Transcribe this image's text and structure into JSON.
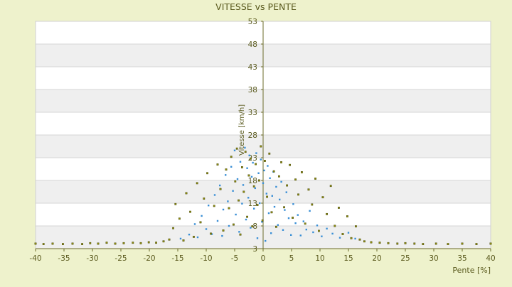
{
  "chart_data": {
    "type": "scatter",
    "title": "VITESSE vs PENTE",
    "xlabel": "Pente [%]",
    "ylabel": "Vitesse [km/h]",
    "xlim": [
      -40,
      40
    ],
    "ylim": [
      3,
      53
    ],
    "x_ticks": [
      "-40",
      "-35",
      "-30",
      "-25",
      "-20",
      "-15",
      "-10",
      "-5",
      "0",
      "5",
      "10",
      "15",
      "20",
      "25",
      "30",
      "35",
      "40"
    ],
    "y_ticks": [
      "3",
      "8",
      "13",
      "18",
      "23",
      "28",
      "33",
      "38",
      "43",
      "48",
      "53"
    ],
    "grid": true,
    "background_bands": true,
    "colors": {
      "page_bg": "#eef2cc",
      "band_light": "#ffffff",
      "band_dark": "#efefef",
      "axis": "#6b6b2a",
      "text": "#5a5a1e",
      "series_a": "#3a8fd6",
      "series_b": "#8c8c10"
    },
    "series": [
      {
        "color": "#3a8fd6",
        "values": [
          [
            -14.5,
            5.2
          ],
          [
            -13.0,
            6.1
          ],
          [
            -12.0,
            8.4
          ],
          [
            -11.5,
            5.5
          ],
          [
            -10.8,
            10.2
          ],
          [
            -10.0,
            7.3
          ],
          [
            -9.6,
            12.5
          ],
          [
            -9.0,
            6.2
          ],
          [
            -8.5,
            14.8
          ],
          [
            -8.0,
            9.1
          ],
          [
            -7.6,
            16.9
          ],
          [
            -7.2,
            5.8
          ],
          [
            -7.0,
            11.6
          ],
          [
            -6.6,
            19.2
          ],
          [
            -6.2,
            13.4
          ],
          [
            -6.0,
            8.0
          ],
          [
            -5.6,
            21.0
          ],
          [
            -5.3,
            15.7
          ],
          [
            -5.0,
            24.6
          ],
          [
            -4.8,
            10.5
          ],
          [
            -4.5,
            18.3
          ],
          [
            -4.2,
            6.7
          ],
          [
            -4.0,
            22.1
          ],
          [
            -3.7,
            12.9
          ],
          [
            -3.5,
            17.0
          ],
          [
            -3.2,
            25.2
          ],
          [
            -3.0,
            9.4
          ],
          [
            -2.8,
            20.7
          ],
          [
            -2.6,
            14.2
          ],
          [
            -2.4,
            23.5
          ],
          [
            -2.2,
            7.6
          ],
          [
            -2.0,
            18.8
          ],
          [
            -1.8,
            21.9
          ],
          [
            -1.6,
            11.8
          ],
          [
            -1.4,
            16.3
          ],
          [
            -1.2,
            24.0
          ],
          [
            -1.0,
            5.3
          ],
          [
            -0.8,
            19.6
          ],
          [
            -0.6,
            13.0
          ],
          [
            -0.4,
            22.6
          ],
          [
            -0.2,
            8.9
          ],
          [
            0.0,
            17.4
          ],
          [
            0.2,
            20.2
          ],
          [
            0.4,
            4.7
          ],
          [
            0.6,
            15.1
          ],
          [
            0.8,
            21.2
          ],
          [
            1.0,
            10.8
          ],
          [
            1.2,
            18.5
          ],
          [
            1.4,
            6.4
          ],
          [
            1.6,
            14.6
          ],
          [
            1.8,
            19.9
          ],
          [
            2.0,
            12.2
          ],
          [
            2.3,
            16.6
          ],
          [
            2.6,
            8.2
          ],
          [
            2.9,
            13.8
          ],
          [
            3.2,
            17.7
          ],
          [
            3.5,
            7.1
          ],
          [
            3.8,
            11.5
          ],
          [
            4.1,
            15.4
          ],
          [
            4.5,
            9.7
          ],
          [
            4.9,
            6.0
          ],
          [
            5.3,
            12.8
          ],
          [
            5.7,
            8.6
          ],
          [
            6.1,
            10.4
          ],
          [
            6.6,
            5.9
          ],
          [
            7.1,
            9.0
          ],
          [
            7.6,
            7.2
          ],
          [
            8.2,
            11.3
          ],
          [
            8.8,
            6.6
          ],
          [
            9.5,
            8.1
          ],
          [
            10.3,
            5.7
          ],
          [
            11.2,
            7.4
          ],
          [
            12.2,
            6.3
          ],
          [
            13.5,
            5.4
          ],
          [
            15.0,
            6.5
          ],
          [
            16.2,
            5.2
          ]
        ]
      },
      {
        "color": "#8c8c10",
        "values": [
          [
            -40.0,
            4.1
          ],
          [
            -38.6,
            4.0
          ],
          [
            -37.0,
            4.1
          ],
          [
            -35.2,
            4.0
          ],
          [
            -33.5,
            4.1
          ],
          [
            -31.8,
            4.0
          ],
          [
            -30.4,
            4.2
          ],
          [
            -29.0,
            4.1
          ],
          [
            -27.5,
            4.3
          ],
          [
            -26.0,
            4.1
          ],
          [
            -24.5,
            4.2
          ],
          [
            -22.9,
            4.3
          ],
          [
            -21.5,
            4.2
          ],
          [
            -20.1,
            4.4
          ],
          [
            -18.8,
            4.3
          ],
          [
            -17.5,
            4.6
          ],
          [
            -16.5,
            5.0
          ],
          [
            -15.8,
            7.5
          ],
          [
            -15.4,
            12.8
          ],
          [
            -14.7,
            9.6
          ],
          [
            -14.0,
            4.8
          ],
          [
            -13.5,
            15.2
          ],
          [
            -12.8,
            11.1
          ],
          [
            -12.2,
            5.6
          ],
          [
            -11.6,
            17.4
          ],
          [
            -11.0,
            8.8
          ],
          [
            -10.4,
            14.0
          ],
          [
            -9.8,
            19.6
          ],
          [
            -9.2,
            6.3
          ],
          [
            -8.6,
            12.4
          ],
          [
            -8.0,
            21.5
          ],
          [
            -7.5,
            16.1
          ],
          [
            -7.0,
            7.0
          ],
          [
            -6.5,
            20.4
          ],
          [
            -6.0,
            11.9
          ],
          [
            -5.6,
            23.2
          ],
          [
            -5.2,
            8.3
          ],
          [
            -4.9,
            17.8
          ],
          [
            -4.6,
            25.0
          ],
          [
            -4.3,
            13.6
          ],
          [
            -4.0,
            6.1
          ],
          [
            -3.7,
            20.9
          ],
          [
            -3.4,
            15.5
          ],
          [
            -3.1,
            24.3
          ],
          [
            -2.8,
            10.0
          ],
          [
            -2.5,
            19.1
          ],
          [
            -2.2,
            22.8
          ],
          [
            -1.9,
            7.9
          ],
          [
            -1.6,
            16.7
          ],
          [
            -1.3,
            21.6
          ],
          [
            -1.0,
            12.6
          ],
          [
            -0.7,
            18.0
          ],
          [
            -0.4,
            25.5
          ],
          [
            -0.1,
            9.2
          ],
          [
            0.3,
            22.3
          ],
          [
            0.7,
            14.4
          ],
          [
            1.1,
            23.9
          ],
          [
            1.5,
            11.0
          ],
          [
            1.9,
            20.0
          ],
          [
            2.3,
            7.8
          ],
          [
            2.8,
            18.9
          ],
          [
            3.2,
            22.0
          ],
          [
            3.7,
            12.1
          ],
          [
            4.2,
            16.9
          ],
          [
            4.7,
            21.4
          ],
          [
            5.2,
            9.8
          ],
          [
            5.7,
            18.2
          ],
          [
            6.2,
            14.9
          ],
          [
            6.8,
            19.8
          ],
          [
            7.4,
            8.5
          ],
          [
            8.0,
            16.0
          ],
          [
            8.6,
            12.7
          ],
          [
            9.2,
            18.4
          ],
          [
            9.8,
            6.9
          ],
          [
            10.5,
            14.3
          ],
          [
            11.2,
            10.6
          ],
          [
            11.9,
            16.8
          ],
          [
            12.6,
            8.0
          ],
          [
            13.3,
            12.0
          ],
          [
            14.0,
            6.2
          ],
          [
            14.8,
            10.1
          ],
          [
            15.5,
            5.3
          ],
          [
            16.3,
            7.9
          ],
          [
            17.0,
            5.0
          ],
          [
            17.8,
            4.6
          ],
          [
            19.0,
            4.4
          ],
          [
            20.5,
            4.3
          ],
          [
            22.0,
            4.2
          ],
          [
            23.6,
            4.1
          ],
          [
            25.0,
            4.2
          ],
          [
            26.6,
            4.1
          ],
          [
            28.1,
            4.0
          ],
          [
            30.4,
            4.1
          ],
          [
            32.5,
            4.0
          ],
          [
            35.0,
            4.1
          ],
          [
            37.5,
            4.0
          ],
          [
            40.0,
            4.1
          ]
        ]
      }
    ]
  }
}
